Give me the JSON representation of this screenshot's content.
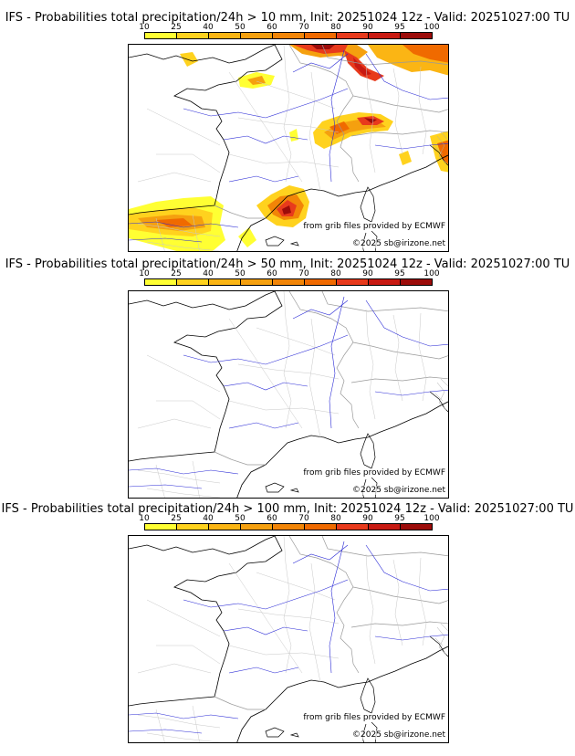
{
  "colorbar": {
    "ticks": [
      "10",
      "25",
      "40",
      "50",
      "60",
      "70",
      "80",
      "90",
      "95",
      "100"
    ],
    "colors": [
      "#ffff33",
      "#ffd21e",
      "#fbb514",
      "#f5a00f",
      "#f28507",
      "#f06a00",
      "#e83a1c",
      "#c81a12",
      "#9c0c0a",
      "#6e0707"
    ]
  },
  "panels": [
    {
      "title": "IFS - Probabilities total precipitation/24h > 10 mm, Init: 20251024 12z - Valid: 20251027:00 TU",
      "source": "from grib files provided by ECMWF",
      "copyright": "©2025 sb@irizone.net"
    },
    {
      "title": "IFS - Probabilities total precipitation/24h > 50 mm, Init: 20251024 12z - Valid: 20251027:00 TU",
      "source": "from grib files provided by ECMWF",
      "copyright": "©2025 sb@irizone.net"
    },
    {
      "title": "IFS - Probabilities total precipitation/24h > 100 mm, Init: 20251024 12z - Valid: 20251027:00 TU",
      "source": "from grib files provided by ECMWF",
      "copyright": "©2025 sb@irizone.net"
    }
  ]
}
